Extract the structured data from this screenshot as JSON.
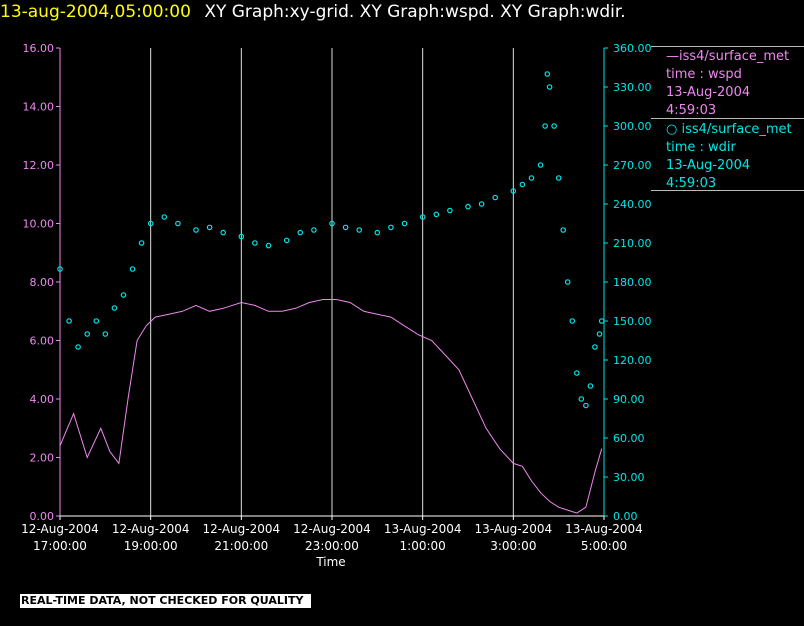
{
  "header": {
    "timestamp": "13-aug-2004,05:00:00",
    "title": "XY Graph:xy-grid.  XY Graph:wspd.  XY Graph:wdir."
  },
  "legend": [
    {
      "marker": "line",
      "lines": [
        "iss4/surface_met",
        "time : wspd",
        "13-Aug-2004",
        "4:59:03"
      ],
      "color": "#ee88ee"
    },
    {
      "marker": "circle",
      "lines": [
        "iss4/surface_met",
        "time : wdir",
        "13-Aug-2004",
        "4:59:03"
      ],
      "color": "#00e5e5"
    }
  ],
  "footer": "REAL-TIME DATA, NOT CHECKED FOR QUALITY",
  "chart_data": {
    "type": "line",
    "xlabel": "Time",
    "x_ticks": [
      {
        "t": 17.0,
        "date": "12-Aug-2004",
        "time": "17:00:00"
      },
      {
        "t": 19.0,
        "date": "12-Aug-2004",
        "time": "19:00:00"
      },
      {
        "t": 21.0,
        "date": "12-Aug-2004",
        "time": "21:00:00"
      },
      {
        "t": 23.0,
        "date": "12-Aug-2004",
        "time": "23:00:00"
      },
      {
        "t": 25.0,
        "date": "13-Aug-2004",
        "time": "1:00:00"
      },
      {
        "t": 27.0,
        "date": "13-Aug-2004",
        "time": "3:00:00"
      },
      {
        "t": 29.0,
        "date": "13-Aug-2004",
        "time": "5:00:00"
      }
    ],
    "xlim_hours": [
      17.0,
      29.0
    ],
    "y_left": {
      "ylim": [
        0,
        16
      ],
      "ticks": [
        "0.00",
        "2.00",
        "4.00",
        "6.00",
        "8.00",
        "10.00",
        "12.00",
        "14.00",
        "16.00"
      ],
      "color": "#ee88ee"
    },
    "y_right": {
      "ylim": [
        0,
        360
      ],
      "ticks": [
        "0.00",
        "30.00",
        "60.00",
        "90.00",
        "120.00",
        "150.00",
        "180.00",
        "210.00",
        "240.00",
        "270.00",
        "300.00",
        "330.00",
        "360.00"
      ],
      "color": "#00e5e5"
    },
    "grid_vertical": true,
    "series": [
      {
        "axis": "left",
        "color": "#ee88ee",
        "style": "line",
        "points": [
          [
            17.0,
            2.4
          ],
          [
            17.3,
            3.5
          ],
          [
            17.6,
            2.0
          ],
          [
            17.9,
            3.0
          ],
          [
            18.1,
            2.2
          ],
          [
            18.3,
            1.8
          ],
          [
            18.5,
            4.0
          ],
          [
            18.7,
            6.0
          ],
          [
            18.9,
            6.5
          ],
          [
            19.1,
            6.8
          ],
          [
            19.4,
            6.9
          ],
          [
            19.7,
            7.0
          ],
          [
            20.0,
            7.2
          ],
          [
            20.3,
            7.0
          ],
          [
            20.6,
            7.1
          ],
          [
            21.0,
            7.3
          ],
          [
            21.3,
            7.2
          ],
          [
            21.6,
            7.0
          ],
          [
            21.9,
            7.0
          ],
          [
            22.2,
            7.1
          ],
          [
            22.5,
            7.3
          ],
          [
            22.8,
            7.4
          ],
          [
            23.1,
            7.4
          ],
          [
            23.4,
            7.3
          ],
          [
            23.7,
            7.0
          ],
          [
            24.0,
            6.9
          ],
          [
            24.3,
            6.8
          ],
          [
            24.6,
            6.5
          ],
          [
            24.9,
            6.2
          ],
          [
            25.2,
            6.0
          ],
          [
            25.5,
            5.5
          ],
          [
            25.8,
            5.0
          ],
          [
            26.1,
            4.0
          ],
          [
            26.4,
            3.0
          ],
          [
            26.7,
            2.3
          ],
          [
            27.0,
            1.8
          ],
          [
            27.2,
            1.7
          ],
          [
            27.4,
            1.2
          ],
          [
            27.6,
            0.8
          ],
          [
            27.8,
            0.5
          ],
          [
            28.0,
            0.3
          ],
          [
            28.2,
            0.2
          ],
          [
            28.4,
            0.1
          ],
          [
            28.6,
            0.3
          ],
          [
            28.8,
            1.5
          ],
          [
            28.95,
            2.3
          ]
        ]
      },
      {
        "axis": "right",
        "color": "#00e5e5",
        "style": "circle",
        "points": [
          [
            17.0,
            190
          ],
          [
            17.2,
            150
          ],
          [
            17.4,
            130
          ],
          [
            17.6,
            140
          ],
          [
            17.8,
            150
          ],
          [
            18.0,
            140
          ],
          [
            18.2,
            160
          ],
          [
            18.4,
            170
          ],
          [
            18.6,
            190
          ],
          [
            18.8,
            210
          ],
          [
            19.0,
            225
          ],
          [
            19.3,
            230
          ],
          [
            19.6,
            225
          ],
          [
            20.0,
            220
          ],
          [
            20.3,
            222
          ],
          [
            20.6,
            218
          ],
          [
            21.0,
            215
          ],
          [
            21.3,
            210
          ],
          [
            21.6,
            208
          ],
          [
            22.0,
            212
          ],
          [
            22.3,
            218
          ],
          [
            22.6,
            220
          ],
          [
            23.0,
            225
          ],
          [
            23.3,
            222
          ],
          [
            23.6,
            220
          ],
          [
            24.0,
            218
          ],
          [
            24.3,
            222
          ],
          [
            24.6,
            225
          ],
          [
            25.0,
            230
          ],
          [
            25.3,
            232
          ],
          [
            25.6,
            235
          ],
          [
            26.0,
            238
          ],
          [
            26.3,
            240
          ],
          [
            26.6,
            245
          ],
          [
            27.0,
            250
          ],
          [
            27.2,
            255
          ],
          [
            27.4,
            260
          ],
          [
            27.6,
            270
          ],
          [
            27.7,
            300
          ],
          [
            27.75,
            340
          ],
          [
            27.8,
            330
          ],
          [
            27.9,
            300
          ],
          [
            28.0,
            260
          ],
          [
            28.1,
            220
          ],
          [
            28.2,
            180
          ],
          [
            28.3,
            150
          ],
          [
            28.4,
            110
          ],
          [
            28.5,
            90
          ],
          [
            28.6,
            85
          ],
          [
            28.7,
            100
          ],
          [
            28.8,
            130
          ],
          [
            28.9,
            140
          ],
          [
            28.95,
            150
          ]
        ]
      }
    ]
  }
}
